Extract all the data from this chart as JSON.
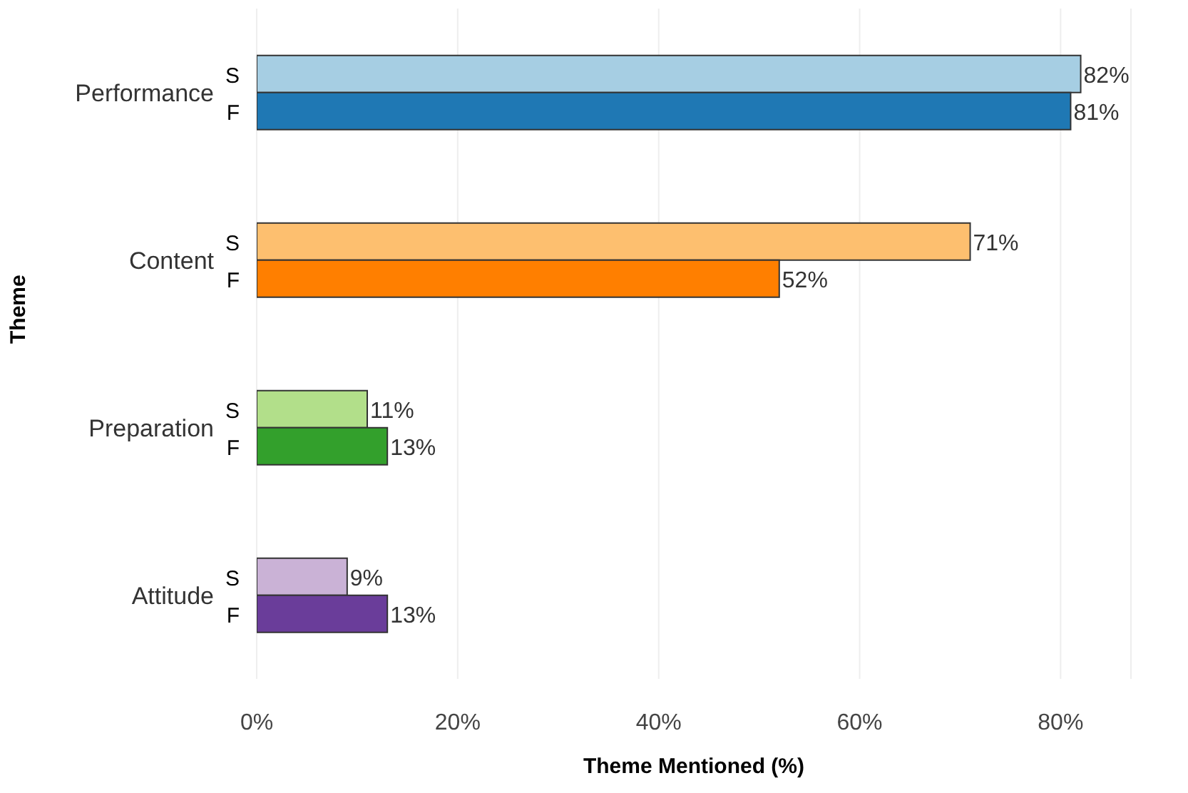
{
  "chart_data": {
    "type": "bar",
    "orientation": "horizontal",
    "xlabel": "Theme Mentioned (%)",
    "ylabel": "Theme",
    "categories": [
      "Performance",
      "Content",
      "Preparation",
      "Attitude"
    ],
    "series": [
      {
        "name": "S",
        "colors": [
          "#a6cee3",
          "#fdbf6f",
          "#b2df8a",
          "#cab2d6"
        ],
        "values": [
          82,
          71,
          11,
          9
        ],
        "value_labels": [
          "82%",
          "71%",
          "11%",
          "9%"
        ]
      },
      {
        "name": "F",
        "colors": [
          "#1f78b4",
          "#ff7f00",
          "#33a02c",
          "#6a3d9a"
        ],
        "values": [
          81,
          52,
          13,
          13
        ],
        "value_labels": [
          "81%",
          "52%",
          "13%",
          "13%"
        ]
      }
    ],
    "xlim": [
      0,
      87
    ],
    "xticks": [
      {
        "value": 0,
        "label": "0%"
      },
      {
        "value": 20,
        "label": "20%"
      },
      {
        "value": 40,
        "label": "40%"
      },
      {
        "value": 60,
        "label": "60%"
      },
      {
        "value": 80,
        "label": "80%"
      }
    ],
    "grid": "x",
    "legend": false
  }
}
